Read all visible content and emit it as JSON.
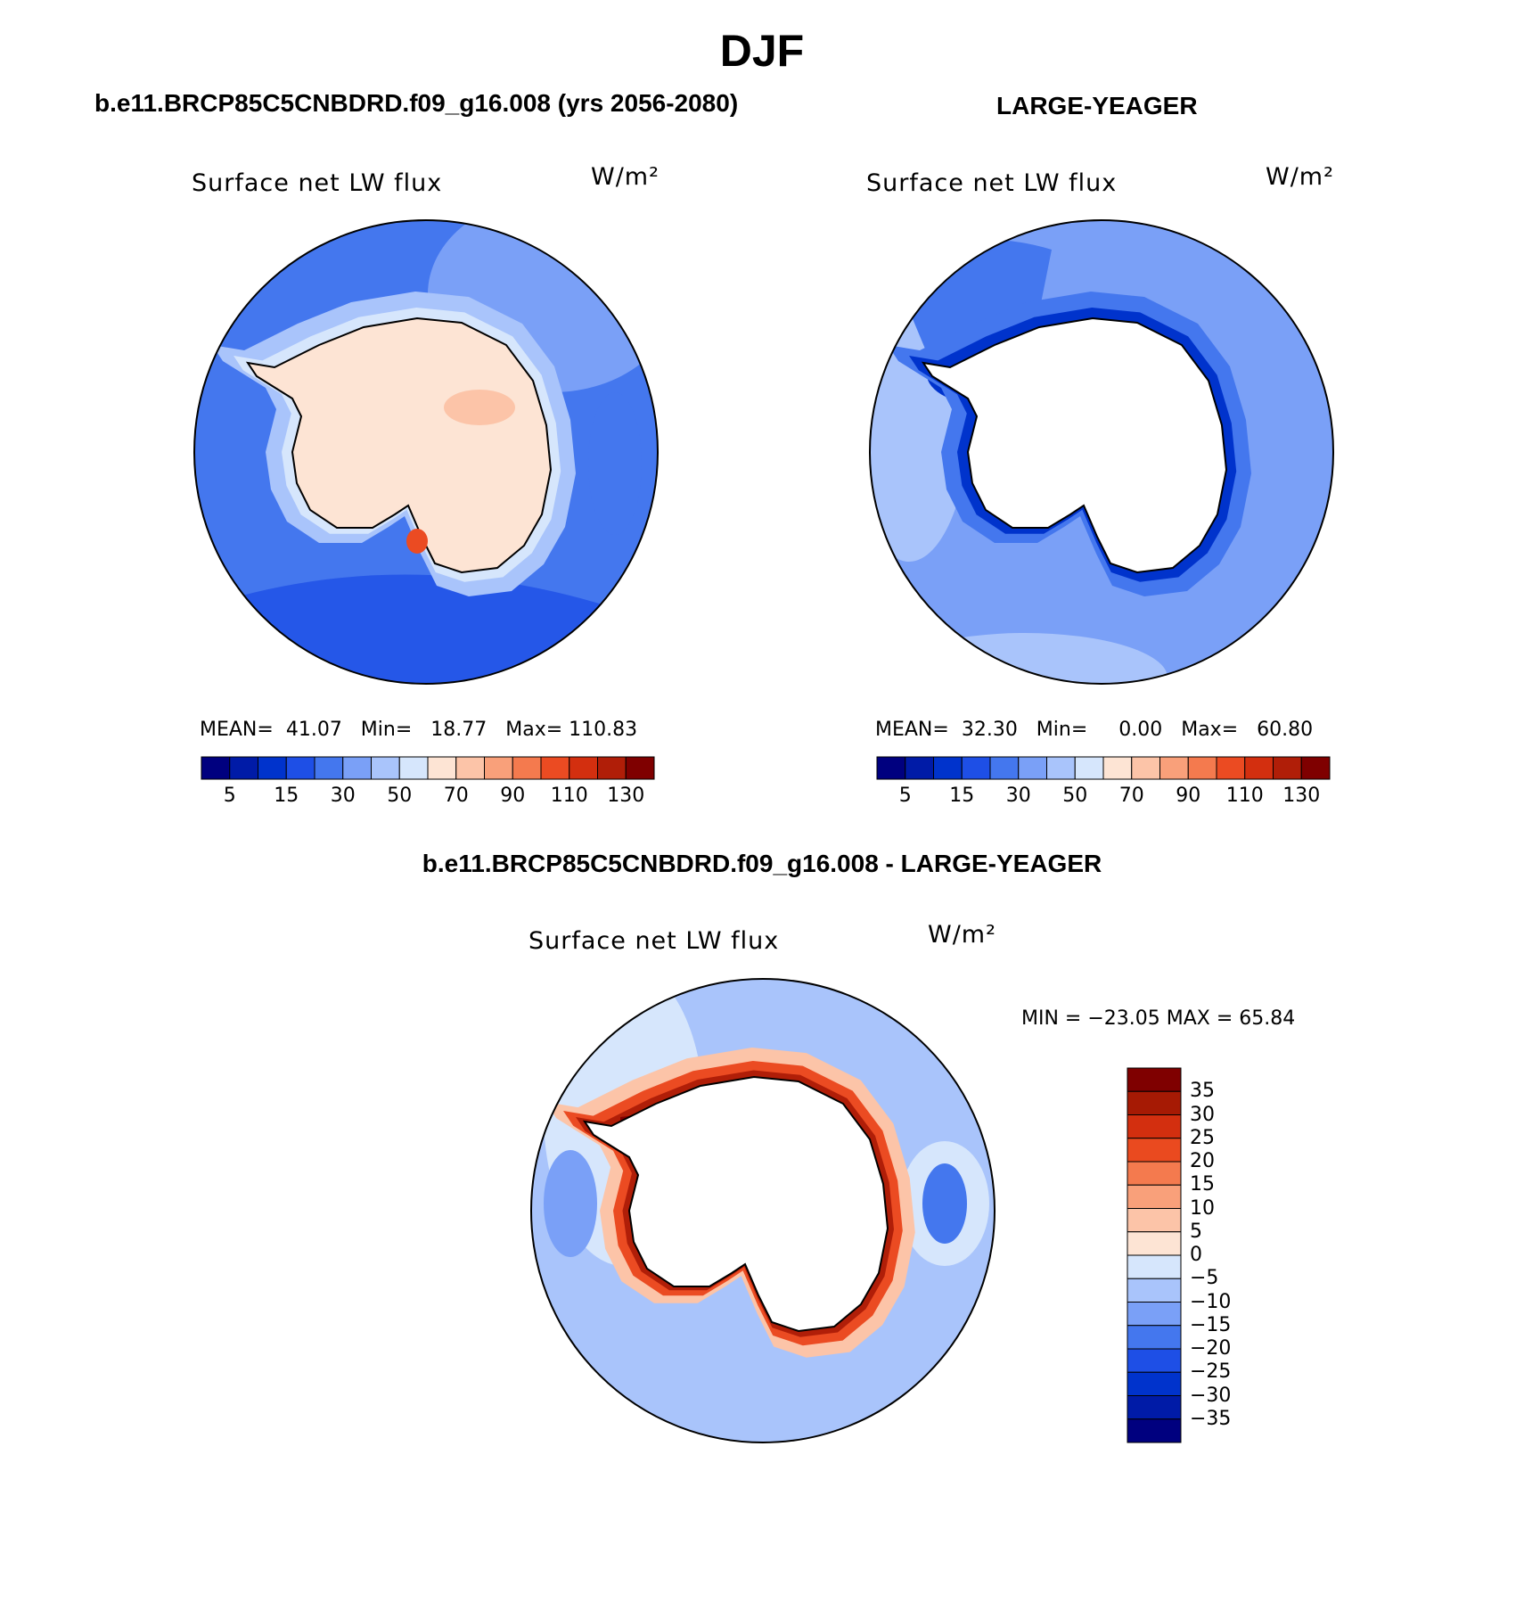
{
  "page_title": "DJF",
  "panels": [
    {
      "case": "b.e11.BRCP85C5CNBDRD.f09_g16.008 (yrs 2056-2080)",
      "variable": "Surface net LW flux",
      "units": "W/m²",
      "stats": {
        "mean_label": "MEAN=",
        "mean": "41.07",
        "min_label": "Min=",
        "min": "18.77",
        "max_label": "Max=",
        "max": "110.83"
      },
      "land_fill": "#fde4d4"
    },
    {
      "case": "LARGE-YEAGER",
      "variable": "Surface net LW flux",
      "units": "W/m²",
      "stats": {
        "mean_label": "MEAN=",
        "mean": "32.30",
        "min_label": "Min=",
        "min": "0.00",
        "max_label": "Max=",
        "max": "60.80"
      },
      "land_fill": "#ffffff"
    },
    {
      "case": "b.e11.BRCP85C5CNBDRD.f09_g16.008 - LARGE-YEAGER",
      "variable": "Surface net LW flux",
      "units": "W/m²",
      "minmax": "MIN = −23.05 MAX =   65.84",
      "land_fill": "#ffffff"
    }
  ],
  "colorbar_abs": {
    "colors": [
      "#00007f",
      "#001ba7",
      "#0033cc",
      "#1e4fe6",
      "#4477ee",
      "#7aa0f7",
      "#a9c4fb",
      "#d6e6fc",
      "#fde4d4",
      "#fcc4a8",
      "#f9a07a",
      "#f47a4e",
      "#eb4b22",
      "#d32f0f",
      "#b01e08",
      "#7f0000"
    ],
    "tick_labels": [
      "5",
      "15",
      "30",
      "50",
      "70",
      "90",
      "110",
      "130"
    ]
  },
  "colorbar_diff": {
    "colors": [
      "#7f0000",
      "#a61a04",
      "#d32f0f",
      "#ea4a1f",
      "#f47a4e",
      "#f9a07a",
      "#fcc4a8",
      "#fde4d4",
      "#d6e6fc",
      "#a9c4fb",
      "#7aa0f7",
      "#4477ee",
      "#1e4fe6",
      "#0033cc",
      "#001ba7",
      "#00007f"
    ],
    "tick_labels": [
      "35",
      "30",
      "25",
      "20",
      "15",
      "10",
      "5",
      "0",
      "−5",
      "−10",
      "−15",
      "−20",
      "−25",
      "−30",
      "−35"
    ]
  }
}
